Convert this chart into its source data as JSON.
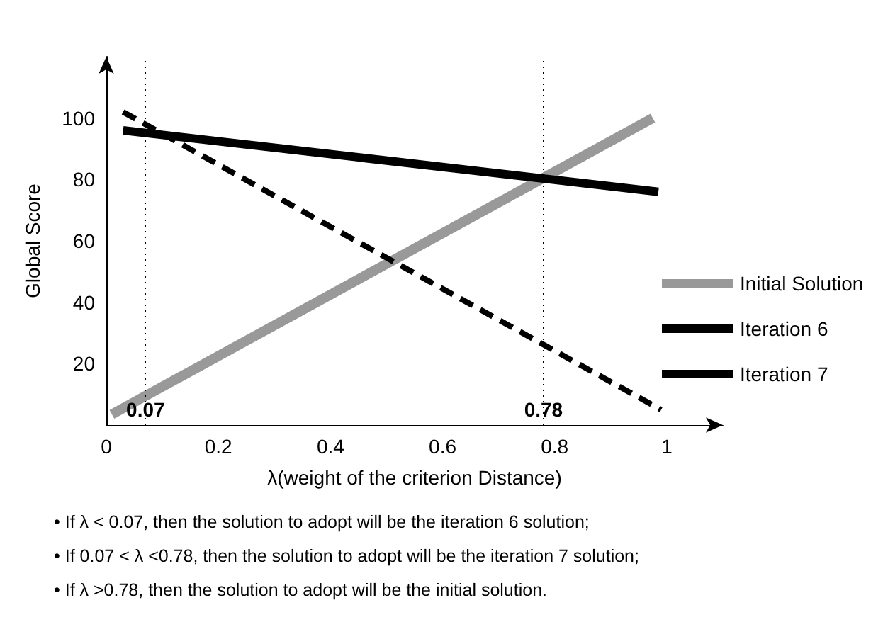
{
  "chart_data": {
    "type": "line",
    "xlabel": "λ(weight of the criterion Distance)",
    "ylabel": "Global Score",
    "xlim": [
      0,
      1.1
    ],
    "xticks": [
      0,
      0.2,
      0.4,
      0.6,
      0.8,
      1
    ],
    "ylim": [
      0,
      120
    ],
    "yticks": [
      20,
      40,
      60,
      80,
      100
    ],
    "series": [
      {
        "name": "Initial Solution",
        "color": "#999999",
        "x": [
          0.01,
          0.975
        ],
        "values": [
          3.5,
          100
        ],
        "line_style": "solid"
      },
      {
        "name": "Iteration 6",
        "color": "#000000",
        "x": [
          0.03,
          0.99
        ],
        "values": [
          102,
          5
        ],
        "line_style": "dashed"
      },
      {
        "name": "Iteration 7",
        "color": "#000000",
        "x": [
          0.03,
          0.985
        ],
        "values": [
          96,
          76
        ],
        "line_style": "solid"
      }
    ],
    "ref_lines": [
      {
        "axis": "x",
        "value": 0.07,
        "label": "0.07",
        "line_style": "dotted"
      },
      {
        "axis": "x",
        "value": 0.78,
        "label": "0.78",
        "line_style": "dotted"
      }
    ],
    "annotations": [
      "• If λ < 0.07, then the solution to adopt will be the iteration 6 solution;",
      "• If 0.07 < λ <0.78, then the solution to adopt will be the iteration 7 solution;",
      "• If λ >0.78, then the solution to adopt will be the initial solution."
    ],
    "grid": false,
    "legend": "right",
    "marker": "none"
  }
}
